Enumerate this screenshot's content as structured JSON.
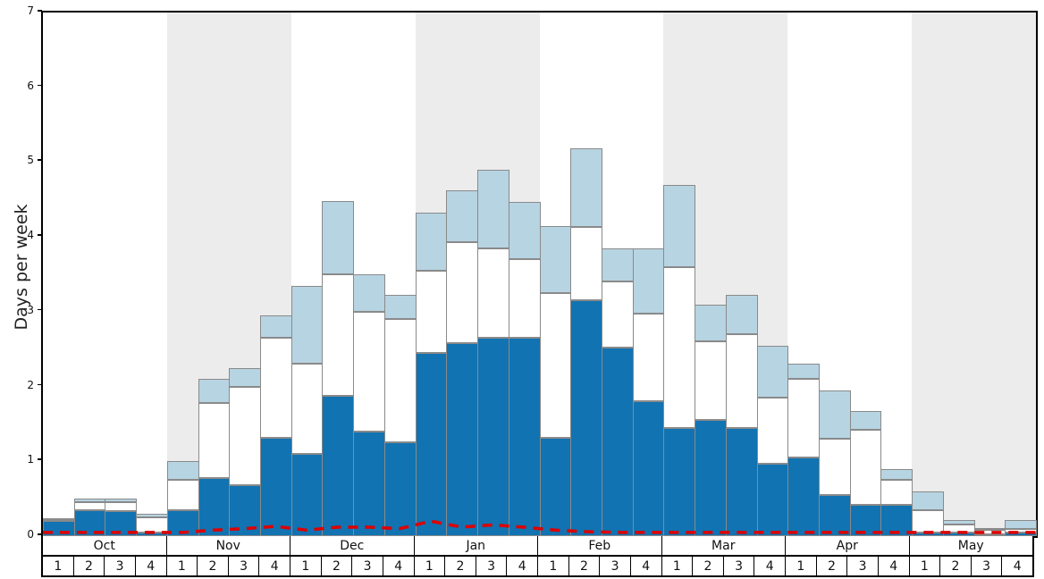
{
  "chart_data": {
    "type": "bar",
    "title": "",
    "xlabel": "",
    "ylabel": "Days per week",
    "ylim": [
      0,
      7
    ],
    "y_ticks": [
      0,
      1,
      2,
      3,
      4,
      5,
      6,
      7
    ],
    "grid": "off",
    "legend": "none",
    "months": [
      "Oct",
      "Nov",
      "Dec",
      "Jan",
      "Feb",
      "Mar",
      "Apr",
      "May"
    ],
    "weeks_per_month": [
      "1",
      "2",
      "3",
      "4"
    ],
    "shaded_months": [
      "Nov",
      "Jan",
      "Mar",
      "May"
    ],
    "colors": {
      "dark_blue": "#1173b2",
      "white_segment": "#ffffff",
      "light_blue": "#b7d4e2",
      "segment_border": "#8a8a8a",
      "band_gray": "#ececec",
      "red_line": "#dd0000"
    },
    "series": [
      {
        "name": "dark-blue-days",
        "color": "#1173b2",
        "cumulative_top": [
          0.2,
          0.35,
          0.33,
          0.05,
          0.35,
          0.78,
          0.68,
          1.32,
          1.1,
          1.88,
          1.4,
          1.25,
          2.45,
          2.58,
          2.65,
          2.65,
          1.32,
          3.15,
          2.52,
          1.8,
          1.45,
          1.55,
          1.45,
          0.97,
          1.05,
          0.55,
          0.42,
          0.42,
          0.05,
          0.05,
          0.02,
          0.05
        ]
      },
      {
        "name": "white-days",
        "color": "#ffffff",
        "cumulative_top": [
          0.21,
          0.45,
          0.45,
          0.25,
          0.75,
          1.78,
          2.0,
          2.65,
          2.3,
          3.5,
          3.0,
          2.9,
          3.55,
          3.93,
          3.85,
          3.7,
          3.25,
          4.13,
          3.4,
          2.97,
          3.6,
          2.6,
          2.7,
          1.85,
          2.1,
          1.3,
          1.42,
          0.75,
          0.35,
          0.15,
          0.08,
          0.1
        ]
      },
      {
        "name": "light-blue-days",
        "color": "#b7d4e2",
        "cumulative_top": [
          0.22,
          0.5,
          0.5,
          0.3,
          1.0,
          2.1,
          2.25,
          2.95,
          3.35,
          4.48,
          3.5,
          3.22,
          4.33,
          4.62,
          4.9,
          4.47,
          4.15,
          5.18,
          3.85,
          3.85,
          4.7,
          3.1,
          3.22,
          2.55,
          2.3,
          1.95,
          1.67,
          0.9,
          0.6,
          0.22,
          0.1,
          0.22
        ]
      }
    ],
    "line_series": {
      "name": "red-dashed-line",
      "color": "#dd0000",
      "values": [
        0.05,
        0.05,
        0.05,
        0.05,
        0.05,
        0.08,
        0.1,
        0.13,
        0.08,
        0.12,
        0.12,
        0.1,
        0.2,
        0.12,
        0.15,
        0.12,
        0.08,
        0.06,
        0.05,
        0.05,
        0.05,
        0.05,
        0.05,
        0.05,
        0.05,
        0.05,
        0.05,
        0.05,
        0.05,
        0.05,
        0.05,
        0.05
      ]
    }
  }
}
